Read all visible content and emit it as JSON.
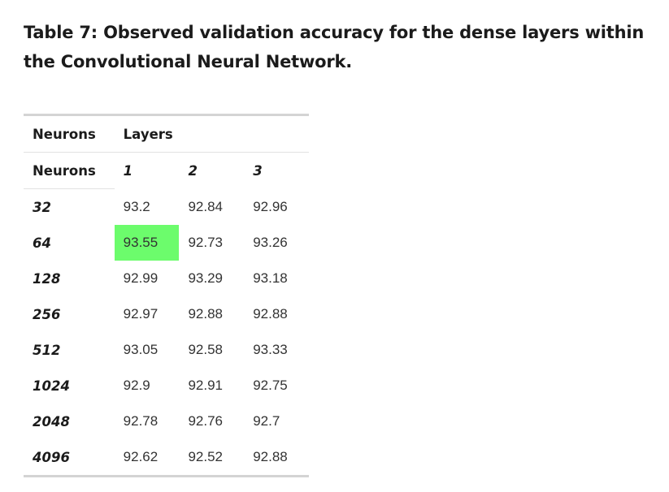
{
  "caption": "Table 7: Observed validation accuracy for the dense layers within the Convolutional Neural Network.",
  "table": {
    "header_row_1": {
      "neurons": "Neurons",
      "layers": "Layers"
    },
    "header_row_2": {
      "neurons": "Neurons",
      "layer_numbers": [
        "1",
        "2",
        "3"
      ]
    },
    "rows": [
      {
        "neurons": "32",
        "values": [
          "93.2",
          "92.84",
          "92.96"
        ]
      },
      {
        "neurons": "64",
        "values": [
          "93.55",
          "92.73",
          "93.26"
        ]
      },
      {
        "neurons": "128",
        "values": [
          "92.99",
          "93.29",
          "93.18"
        ]
      },
      {
        "neurons": "256",
        "values": [
          "92.97",
          "92.88",
          "92.88"
        ]
      },
      {
        "neurons": "512",
        "values": [
          "93.05",
          "92.58",
          "93.33"
        ]
      },
      {
        "neurons": "1024",
        "values": [
          "92.9",
          "92.91",
          "92.75"
        ]
      },
      {
        "neurons": "2048",
        "values": [
          "92.78",
          "92.76",
          "92.7"
        ]
      },
      {
        "neurons": "4096",
        "values": [
          "92.62",
          "92.52",
          "92.88"
        ]
      }
    ],
    "highlight": {
      "row_index": 1,
      "col_index": 0,
      "color": "#6cfc6c"
    },
    "rule_color": "#d4d4d4"
  }
}
